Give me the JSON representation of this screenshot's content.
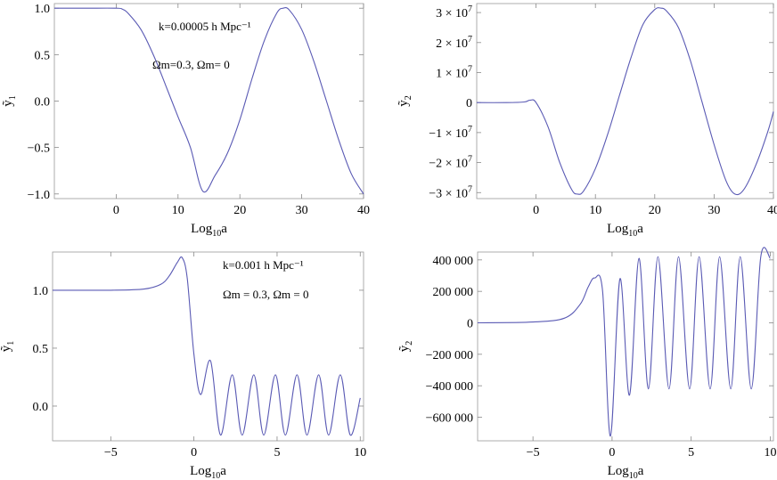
{
  "chart_data": [
    {
      "type": "line",
      "xlabel": "Log",
      "xlabel_sub": "10",
      "xlabel_tail": "a",
      "ylabel": "ỹ",
      "ylabel_sub": "1",
      "xlim": [
        -10,
        40
      ],
      "ylim": [
        -1.05,
        1.05
      ],
      "xticks": [
        0,
        10,
        20,
        30,
        40
      ],
      "yticks": [
        1.0,
        0.5,
        0.0,
        -0.5,
        -1.0
      ],
      "ytick_labels": [
        "1.0",
        "0.5",
        "0.0",
        "−0.5",
        "−1.0"
      ],
      "annotations": [
        "k=0.00005 h Mpc⁻¹",
        "Ωm=0.3, Ωm= 0"
      ],
      "series_color": "#5a5ab4",
      "x": [
        -10,
        -5,
        0,
        1,
        2,
        4,
        6,
        8,
        10,
        12,
        14,
        16,
        18,
        20,
        22,
        24,
        26,
        27,
        28,
        30,
        32,
        34,
        36,
        38,
        40
      ],
      "y": [
        1.0,
        1.0,
        1.0,
        0.99,
        0.94,
        0.77,
        0.5,
        0.17,
        -0.17,
        -0.5,
        -0.97,
        -0.8,
        -0.56,
        -0.2,
        0.25,
        0.66,
        0.95,
        1.0,
        0.98,
        0.77,
        0.42,
        0.0,
        -0.42,
        -0.78,
        -1.0
      ],
      "grid": false
    },
    {
      "type": "line",
      "xlabel": "Log",
      "xlabel_sub": "10",
      "xlabel_tail": "a",
      "ylabel": "ỹ",
      "ylabel_sub": "2",
      "xlim": [
        -10,
        40
      ],
      "ylim": [
        -32000000,
        33000000
      ],
      "xticks": [
        0,
        10,
        20,
        30,
        40
      ],
      "yticks": [
        30000000,
        20000000,
        10000000,
        0,
        -10000000,
        -20000000,
        -30000000
      ],
      "ytick_labels": [
        "3 × 10⁷",
        "2 × 10⁷",
        "1 × 10⁷",
        "0",
        "−1 × 10⁷",
        "−2 × 10⁷",
        "−3 × 10⁷"
      ],
      "annotations": [],
      "series_color": "#5a5ab4",
      "x": [
        -10,
        -5,
        -2,
        -1,
        0,
        2,
        4,
        6,
        7,
        8,
        10,
        12,
        14,
        16,
        18,
        20,
        21,
        22,
        24,
        26,
        28,
        30,
        32,
        33.5,
        35,
        37,
        39,
        40
      ],
      "y": [
        0,
        0,
        200000,
        800000,
        0,
        -8000000,
        -20000000,
        -29000000,
        -30500000,
        -29500000,
        -22000000,
        -11000000,
        2000000,
        15000000,
        26000000,
        31000000,
        31500000,
        30500000,
        25000000,
        14000000,
        0,
        -14000000,
        -26000000,
        -30500000,
        -29000000,
        -21000000,
        -10000000,
        -3000000
      ],
      "grid": false
    },
    {
      "type": "line",
      "xlabel": "Log",
      "xlabel_sub": "10",
      "xlabel_tail": "a",
      "ylabel": "ỹ",
      "ylabel_sub": "1",
      "xlim": [
        -8.5,
        10.2
      ],
      "ylim": [
        -0.3,
        1.33
      ],
      "xticks": [
        -5,
        0,
        5,
        10
      ],
      "yticks": [
        1.0,
        0.5,
        0.0
      ],
      "ytick_labels": [
        "1.0",
        "0.5",
        "0.0"
      ],
      "annotations": [
        "k=0.001 h Mpc⁻¹",
        "Ωm = 0.3, Ωm = 0"
      ],
      "series_color": "#5a5ab4",
      "x": [
        -8.5,
        -5,
        -3,
        -2,
        -1.5,
        -1,
        -0.7,
        -0.4,
        0,
        0.4,
        1.0,
        1.6,
        2.3,
        2.9,
        3.6,
        4.2,
        4.9,
        5.5,
        6.2,
        6.8,
        7.5,
        8.1,
        8.8,
        9.4,
        10.0
      ],
      "y": [
        1.0,
        1.0,
        1.01,
        1.05,
        1.12,
        1.24,
        1.28,
        1.1,
        0.45,
        0.1,
        0.39,
        -0.25,
        0.27,
        -0.25,
        0.27,
        -0.25,
        0.27,
        -0.25,
        0.27,
        -0.25,
        0.27,
        -0.25,
        0.27,
        -0.25,
        0.07
      ],
      "grid": false
    },
    {
      "type": "line",
      "xlabel": "Log",
      "xlabel_sub": "10",
      "xlabel_tail": "a",
      "ylabel": "ỹ",
      "ylabel_sub": "2",
      "xlim": [
        -8.5,
        10.2
      ],
      "ylim": [
        -750000,
        450000
      ],
      "xticks": [
        -5,
        0,
        5,
        10
      ],
      "yticks": [
        400000,
        200000,
        0,
        -200000,
        -400000,
        -600000
      ],
      "ytick_labels": [
        "400 000",
        "200 000",
        "0",
        "−200 000",
        "−400 000",
        "−600 000"
      ],
      "annotations": [],
      "series_color": "#5a5ab4",
      "x": [
        -8.5,
        -5,
        -3,
        -2,
        -1.5,
        -1.1,
        -0.6,
        -0.1,
        0.5,
        1.1,
        1.7,
        2.3,
        2.9,
        3.6,
        4.2,
        4.9,
        5.5,
        6.2,
        6.8,
        7.5,
        8.1,
        8.8,
        9.4,
        10.0
      ],
      "y": [
        0,
        5000,
        30000,
        120000,
        230000,
        285000,
        200000,
        -720000,
        280000,
        -460000,
        410000,
        -420000,
        420000,
        -420000,
        420000,
        -420000,
        420000,
        -420000,
        420000,
        -420000,
        420000,
        -420000,
        420000,
        410000
      ],
      "grid": false
    }
  ]
}
